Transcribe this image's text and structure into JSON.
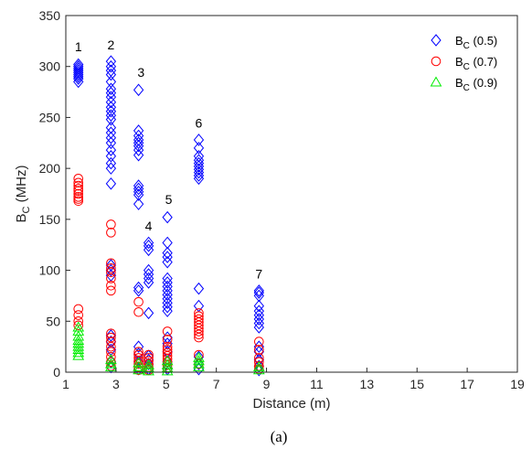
{
  "chart_data": {
    "type": "scatter",
    "xlabel": "Distance (m)",
    "ylabel_main": "B",
    "ylabel_sub": "C",
    "ylabel_unit": " (MHz)",
    "caption": "(a)",
    "xlim": [
      1,
      19
    ],
    "ylim": [
      0,
      350
    ],
    "xticks": [
      1,
      3,
      5,
      7,
      9,
      11,
      13,
      15,
      17,
      19
    ],
    "yticks": [
      0,
      50,
      100,
      150,
      200,
      250,
      300,
      350
    ],
    "legend_position": "top-right",
    "grid": false,
    "group_labels": [
      {
        "text": "1",
        "x": 1.5,
        "y": 315
      },
      {
        "text": "2",
        "x": 2.8,
        "y": 317
      },
      {
        "text": "3",
        "x": 4.0,
        "y": 290
      },
      {
        "text": "4",
        "x": 4.3,
        "y": 139
      },
      {
        "text": "5",
        "x": 5.1,
        "y": 165
      },
      {
        "text": "6",
        "x": 6.3,
        "y": 240
      },
      {
        "text": "7",
        "x": 8.7,
        "y": 92
      }
    ],
    "series": [
      {
        "label": "B",
        "label_sub": "C",
        "label_suffix": " (0.5)",
        "marker": "diamond",
        "color": "#0000ff",
        "points": [
          [
            1.5,
            285
          ],
          [
            1.5,
            288
          ],
          [
            1.5,
            290
          ],
          [
            1.5,
            292
          ],
          [
            1.5,
            294
          ],
          [
            1.5,
            296
          ],
          [
            1.5,
            298
          ],
          [
            1.5,
            300
          ],
          [
            1.5,
            302
          ],
          [
            2.8,
            305
          ],
          [
            2.8,
            300
          ],
          [
            2.8,
            296
          ],
          [
            2.8,
            292
          ],
          [
            2.8,
            285
          ],
          [
            2.8,
            278
          ],
          [
            2.8,
            274
          ],
          [
            2.8,
            270
          ],
          [
            2.8,
            265
          ],
          [
            2.8,
            260
          ],
          [
            2.8,
            256
          ],
          [
            2.8,
            252
          ],
          [
            2.8,
            248
          ],
          [
            2.8,
            240
          ],
          [
            2.8,
            235
          ],
          [
            2.8,
            230
          ],
          [
            2.8,
            225
          ],
          [
            2.8,
            218
          ],
          [
            2.8,
            212
          ],
          [
            2.8,
            205
          ],
          [
            2.8,
            200
          ],
          [
            2.8,
            185
          ],
          [
            2.8,
            105
          ],
          [
            2.8,
            100
          ],
          [
            2.8,
            95
          ],
          [
            2.8,
            36
          ],
          [
            2.8,
            30
          ],
          [
            2.8,
            22
          ],
          [
            2.8,
            10
          ],
          [
            2.8,
            5
          ],
          [
            3.9,
            277
          ],
          [
            3.9,
            237
          ],
          [
            3.9,
            232
          ],
          [
            3.9,
            228
          ],
          [
            3.9,
            225
          ],
          [
            3.9,
            222
          ],
          [
            3.9,
            218
          ],
          [
            3.9,
            213
          ],
          [
            3.9,
            183
          ],
          [
            3.9,
            180
          ],
          [
            3.9,
            177
          ],
          [
            3.9,
            174
          ],
          [
            3.9,
            165
          ],
          [
            3.9,
            83
          ],
          [
            3.9,
            80
          ],
          [
            3.9,
            25
          ],
          [
            3.9,
            18
          ],
          [
            3.9,
            10
          ],
          [
            3.9,
            3
          ],
          [
            4.3,
            127
          ],
          [
            4.3,
            124
          ],
          [
            4.3,
            120
          ],
          [
            4.3,
            100
          ],
          [
            4.3,
            96
          ],
          [
            4.3,
            92
          ],
          [
            4.3,
            88
          ],
          [
            4.3,
            58
          ],
          [
            4.3,
            16
          ],
          [
            4.3,
            12
          ],
          [
            4.3,
            8
          ],
          [
            4.3,
            3
          ],
          [
            5.05,
            152
          ],
          [
            5.05,
            127
          ],
          [
            5.05,
            117
          ],
          [
            5.05,
            113
          ],
          [
            5.05,
            108
          ],
          [
            5.05,
            92
          ],
          [
            5.05,
            88
          ],
          [
            5.05,
            84
          ],
          [
            5.05,
            80
          ],
          [
            5.05,
            76
          ],
          [
            5.05,
            72
          ],
          [
            5.05,
            68
          ],
          [
            5.05,
            64
          ],
          [
            5.05,
            60
          ],
          [
            5.05,
            34
          ],
          [
            5.05,
            28
          ],
          [
            5.05,
            20
          ],
          [
            5.05,
            10
          ],
          [
            5.05,
            3
          ],
          [
            6.3,
            228
          ],
          [
            6.3,
            220
          ],
          [
            6.3,
            212
          ],
          [
            6.3,
            208
          ],
          [
            6.3,
            205
          ],
          [
            6.3,
            202
          ],
          [
            6.3,
            199
          ],
          [
            6.3,
            196
          ],
          [
            6.3,
            193
          ],
          [
            6.3,
            190
          ],
          [
            6.3,
            82
          ],
          [
            6.3,
            65
          ],
          [
            6.3,
            15
          ],
          [
            6.3,
            8
          ],
          [
            6.3,
            3
          ],
          [
            8.7,
            80
          ],
          [
            8.7,
            78
          ],
          [
            8.7,
            75
          ],
          [
            8.7,
            65
          ],
          [
            8.7,
            60
          ],
          [
            8.7,
            56
          ],
          [
            8.7,
            52
          ],
          [
            8.7,
            48
          ],
          [
            8.7,
            44
          ],
          [
            8.7,
            25
          ],
          [
            8.7,
            20
          ],
          [
            8.7,
            12
          ],
          [
            8.7,
            6
          ],
          [
            8.7,
            2
          ]
        ]
      },
      {
        "label": "B",
        "label_sub": "C",
        "label_suffix": " (0.7)",
        "marker": "circle",
        "color": "#ff0000",
        "points": [
          [
            1.5,
            190
          ],
          [
            1.5,
            186
          ],
          [
            1.5,
            183
          ],
          [
            1.5,
            180
          ],
          [
            1.5,
            178
          ],
          [
            1.5,
            175
          ],
          [
            1.5,
            172
          ],
          [
            1.5,
            170
          ],
          [
            1.5,
            168
          ],
          [
            1.5,
            62
          ],
          [
            1.5,
            56
          ],
          [
            1.5,
            50
          ],
          [
            1.5,
            46
          ],
          [
            2.8,
            145
          ],
          [
            2.8,
            137
          ],
          [
            2.8,
            107
          ],
          [
            2.8,
            102
          ],
          [
            2.8,
            98
          ],
          [
            2.8,
            92
          ],
          [
            2.8,
            85
          ],
          [
            2.8,
            80
          ],
          [
            2.8,
            38
          ],
          [
            2.8,
            34
          ],
          [
            2.8,
            30
          ],
          [
            2.8,
            25
          ],
          [
            2.8,
            20
          ],
          [
            2.8,
            15
          ],
          [
            2.8,
            10
          ],
          [
            2.8,
            6
          ],
          [
            3.9,
            69
          ],
          [
            3.9,
            59
          ],
          [
            3.9,
            20
          ],
          [
            3.9,
            17
          ],
          [
            3.9,
            14
          ],
          [
            3.9,
            11
          ],
          [
            3.9,
            8
          ],
          [
            3.9,
            5
          ],
          [
            3.9,
            2
          ],
          [
            4.3,
            17
          ],
          [
            4.3,
            14
          ],
          [
            4.3,
            11
          ],
          [
            4.3,
            8
          ],
          [
            4.3,
            5
          ],
          [
            4.3,
            2
          ],
          [
            5.05,
            40
          ],
          [
            5.05,
            32
          ],
          [
            5.05,
            25
          ],
          [
            5.05,
            22
          ],
          [
            5.05,
            19
          ],
          [
            5.05,
            16
          ],
          [
            5.05,
            13
          ],
          [
            5.05,
            10
          ],
          [
            5.05,
            7
          ],
          [
            5.05,
            4
          ],
          [
            6.3,
            58
          ],
          [
            6.3,
            55
          ],
          [
            6.3,
            52
          ],
          [
            6.3,
            49
          ],
          [
            6.3,
            46
          ],
          [
            6.3,
            43
          ],
          [
            6.3,
            40
          ],
          [
            6.3,
            37
          ],
          [
            6.3,
            34
          ],
          [
            6.3,
            17
          ],
          [
            6.3,
            8
          ],
          [
            8.7,
            30
          ],
          [
            8.7,
            22
          ],
          [
            8.7,
            14
          ],
          [
            8.7,
            10
          ],
          [
            8.7,
            6
          ],
          [
            8.7,
            3
          ]
        ]
      },
      {
        "label": "B",
        "label_sub": "C",
        "label_suffix": " (0.9)",
        "marker": "triangle",
        "color": "#00ee00",
        "points": [
          [
            1.5,
            44
          ],
          [
            1.5,
            40
          ],
          [
            1.5,
            35
          ],
          [
            1.5,
            31
          ],
          [
            1.5,
            28
          ],
          [
            1.5,
            25
          ],
          [
            1.5,
            22
          ],
          [
            1.5,
            19
          ],
          [
            1.5,
            16
          ],
          [
            2.8,
            12
          ],
          [
            2.8,
            8
          ],
          [
            2.8,
            5
          ],
          [
            3.9,
            9
          ],
          [
            3.9,
            5
          ],
          [
            3.9,
            2
          ],
          [
            4.3,
            7
          ],
          [
            4.3,
            4
          ],
          [
            4.3,
            1
          ],
          [
            5.05,
            11
          ],
          [
            5.05,
            7
          ],
          [
            5.05,
            4
          ],
          [
            5.05,
            1
          ],
          [
            6.3,
            14
          ],
          [
            6.3,
            11
          ],
          [
            6.3,
            8
          ],
          [
            6.3,
            5
          ],
          [
            8.7,
            5
          ],
          [
            8.7,
            2
          ]
        ]
      }
    ]
  }
}
